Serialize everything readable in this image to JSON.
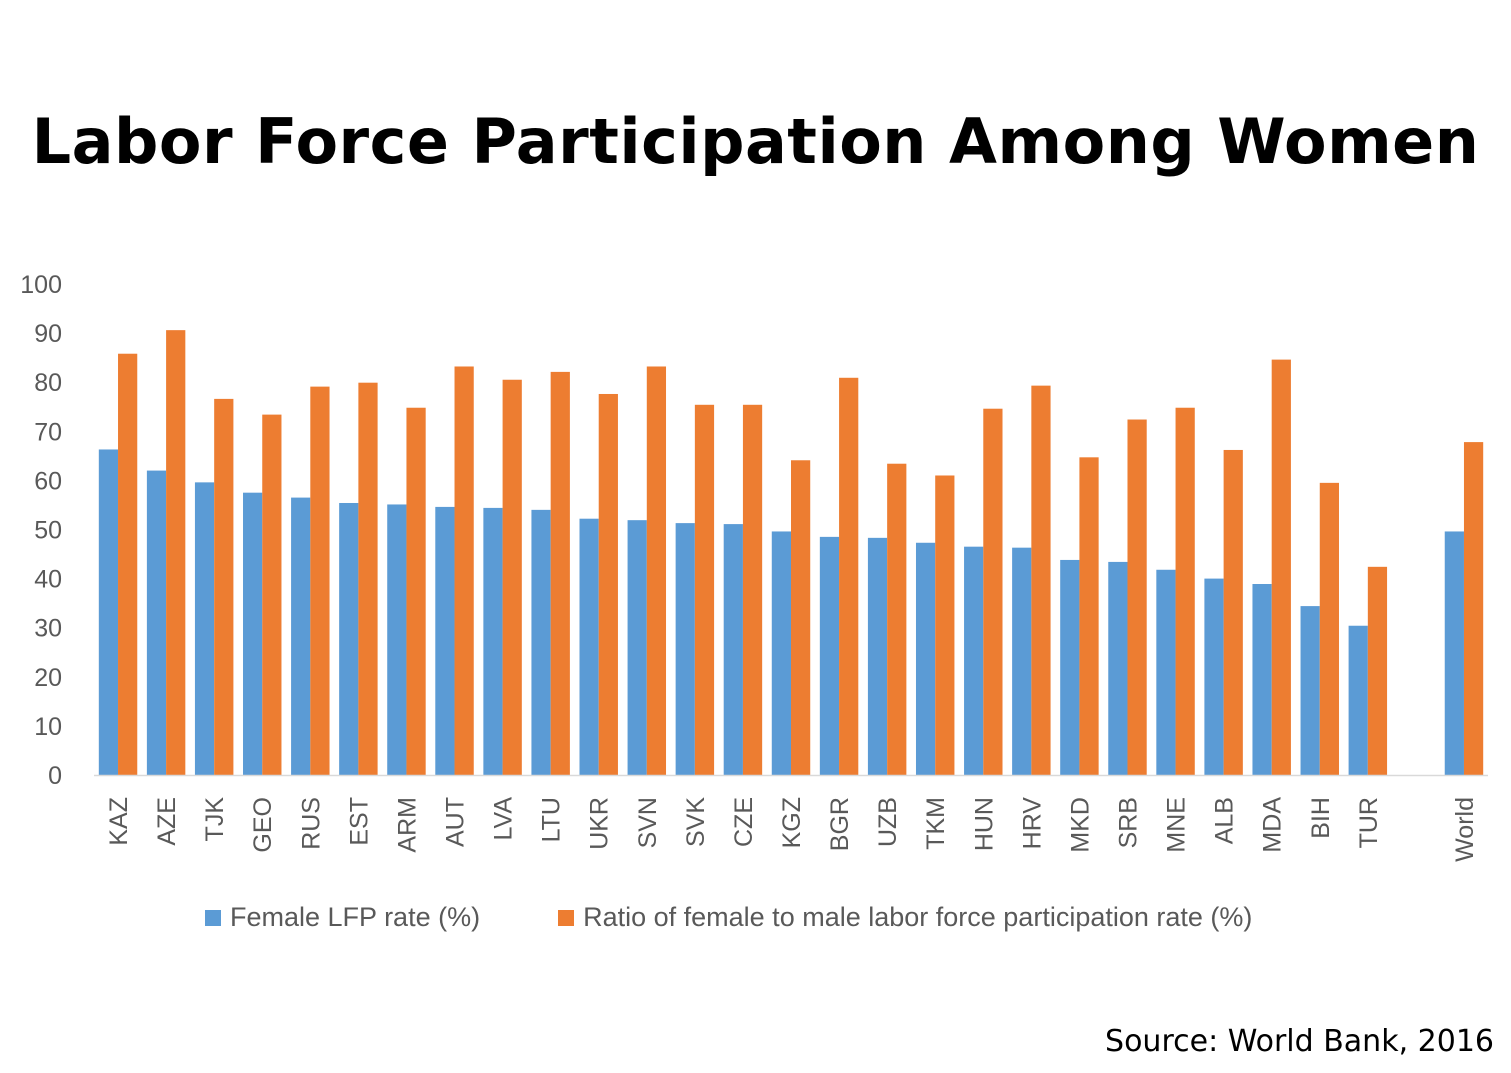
{
  "chart_data": {
    "type": "bar",
    "title": "Labor Force Participation Among Women",
    "xlabel": "",
    "ylabel": "",
    "ylim": [
      0,
      100
    ],
    "yticks": [
      0,
      10,
      20,
      30,
      40,
      50,
      60,
      70,
      80,
      90,
      100
    ],
    "grid": false,
    "legend_position": "bottom",
    "categories": [
      "KAZ",
      "AZE",
      "TJK",
      "GEO",
      "RUS",
      "EST",
      "ARM",
      "AUT",
      "LVA",
      "LTU",
      "UKR",
      "SVN",
      "SVK",
      "CZE",
      "KGZ",
      "BGR",
      "UZB",
      "TKM",
      "HUN",
      "HRV",
      "MKD",
      "SRB",
      "MNE",
      "ALB",
      "MDA",
      "BIH",
      "TUR",
      "",
      "World"
    ],
    "series": [
      {
        "name": "Female LFP rate (%)",
        "color": "#5B9BD5",
        "values": [
          66.3,
          62.0,
          59.6,
          57.5,
          56.5,
          55.4,
          55.1,
          54.6,
          54.4,
          54.0,
          52.2,
          51.9,
          51.3,
          51.1,
          49.6,
          48.5,
          48.3,
          47.3,
          46.5,
          46.3,
          43.8,
          43.4,
          41.8,
          40.0,
          38.9,
          34.4,
          30.4,
          null,
          49.6
        ]
      },
      {
        "name": "Ratio of female to male labor force participation rate (%)",
        "color": "#ED7D31",
        "values": [
          85.8,
          90.6,
          76.6,
          73.4,
          79.1,
          79.9,
          74.8,
          83.2,
          80.5,
          82.1,
          77.6,
          83.2,
          75.4,
          75.4,
          64.1,
          80.9,
          63.4,
          61.0,
          74.6,
          79.3,
          64.7,
          72.4,
          74.8,
          66.2,
          84.6,
          59.5,
          42.4,
          null,
          67.8
        ]
      }
    ]
  },
  "source_note": "Source: World Bank, 2016",
  "colors": {
    "axis_line": "#D9D9D9",
    "label_text": "#595959",
    "title_text": "#000000"
  }
}
